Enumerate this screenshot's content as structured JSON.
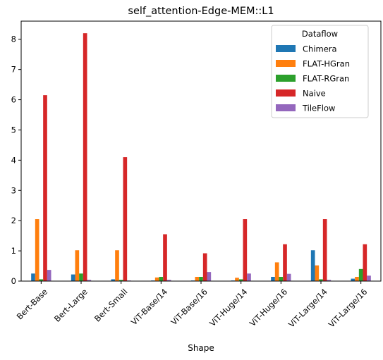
{
  "chart_data": {
    "type": "bar",
    "title": "self_attention-Edge-MEM::L1",
    "xlabel": "Shape",
    "ylabel": "",
    "ylim": [
      0,
      8.6
    ],
    "yticks": [
      0,
      1,
      2,
      3,
      4,
      5,
      6,
      7,
      8
    ],
    "grid": false,
    "legend_position": "top-right",
    "legend_title": "Dataflow",
    "categories": [
      "Bert-Base",
      "Bert-Large",
      "Bert-Small",
      "ViT-Base/14",
      "ViT-Base/16",
      "ViT-Huge/14",
      "ViT-Huge/16",
      "ViT-Large/14",
      "ViT-Large/16"
    ],
    "series": [
      {
        "name": "Chimera",
        "color": "#1f77b4",
        "values": [
          0.25,
          0.22,
          0.06,
          0.02,
          0.02,
          0.02,
          0.14,
          1.02,
          0.08
        ]
      },
      {
        "name": "FLAT-HGran",
        "color": "#ff7f0e",
        "values": [
          2.05,
          1.02,
          1.02,
          0.12,
          0.14,
          0.11,
          0.62,
          0.52,
          0.14
        ]
      },
      {
        "name": "FLAT-RGran",
        "color": "#2ca02c",
        "values": [
          0.06,
          0.25,
          0.04,
          0.14,
          0.14,
          0.06,
          0.14,
          0.06,
          0.4
        ]
      },
      {
        "name": "Naive",
        "color": "#d62728",
        "values": [
          6.15,
          8.2,
          4.1,
          1.55,
          0.92,
          2.05,
          1.22,
          2.05,
          1.22
        ]
      },
      {
        "name": "TileFlow",
        "color": "#9467bd",
        "values": [
          0.37,
          0.04,
          0.02,
          0.04,
          0.3,
          0.25,
          0.24,
          0.04,
          0.18
        ]
      }
    ]
  }
}
